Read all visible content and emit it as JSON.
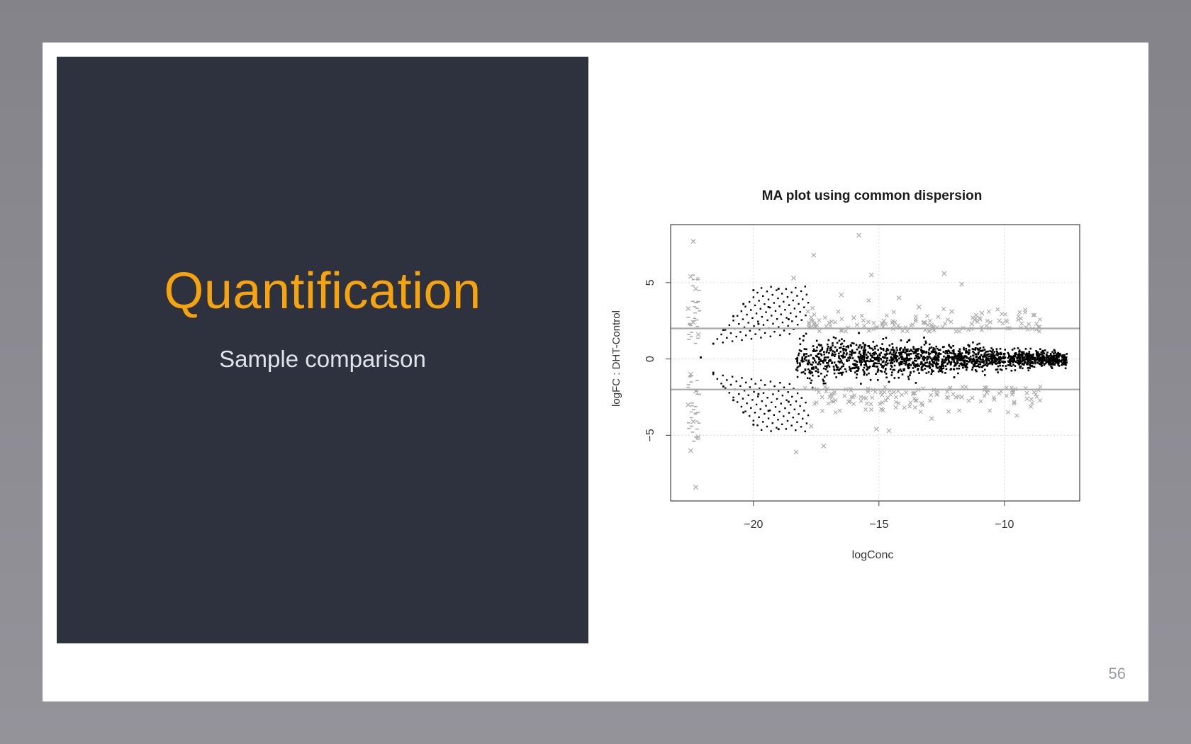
{
  "slide": {
    "title": "Quantification",
    "subtitle": "Sample comparison",
    "page_number": "56"
  },
  "colors": {
    "panel": "#2e313e",
    "title": "#f5a410",
    "subtitle": "#e1e3ea",
    "page_number": "#9a9ca6",
    "points_nonsignificant": "#000000",
    "points_significant": "#aaaaaa"
  },
  "chart_data": {
    "type": "scatter",
    "title": "MA plot using common dispersion",
    "xlabel": "logConc",
    "ylabel": "logFC : DHT-Control",
    "xlim": [
      -23.3,
      -7.0
    ],
    "ylim": [
      -9.3,
      8.8
    ],
    "xticks": [
      -20,
      -15,
      -10
    ],
    "xtick_labels": [
      "−20",
      "−15",
      "−10"
    ],
    "yticks": [
      -5,
      0,
      5
    ],
    "ytick_labels": [
      "−5",
      "0",
      "5"
    ],
    "grid": true,
    "threshold_lines": [
      2,
      -2
    ],
    "series": [
      {
        "marker": "dot",
        "color": "#000000",
        "points": [
          [
            -17.5,
            0.2
          ],
          [
            -16.8,
            -0.5
          ],
          [
            -16.0,
            0.4
          ],
          [
            -15.2,
            -0.3
          ],
          [
            -14.5,
            0.6
          ],
          [
            -13.8,
            -0.4
          ],
          [
            -13.0,
            0.3
          ],
          [
            -12.2,
            -0.2
          ],
          [
            -11.4,
            0.4
          ],
          [
            -10.6,
            -0.3
          ],
          [
            -9.8,
            0.2
          ],
          [
            -9.0,
            0.1
          ],
          [
            -8.2,
            -0.2
          ],
          [
            -7.6,
            0.1
          ],
          [
            -18.0,
            1.5
          ],
          [
            -17.2,
            -1.6
          ],
          [
            -15.8,
            1.7
          ],
          [
            -14.6,
            -1.5
          ],
          [
            -13.2,
            1.4
          ],
          [
            -12.0,
            -1.2
          ],
          [
            -20.0,
            4.5
          ],
          [
            -20.4,
            3.6
          ],
          [
            -20.8,
            2.8
          ],
          [
            -21.2,
            1.9
          ],
          [
            -21.6,
            1.0
          ],
          [
            -20.0,
            -4.3
          ],
          [
            -20.4,
            -3.5
          ],
          [
            -20.8,
            -2.7
          ],
          [
            -21.2,
            -1.8
          ],
          [
            -21.6,
            -0.9
          ],
          [
            -19.0,
            4.6
          ],
          [
            -19.4,
            3.4
          ],
          [
            -19.8,
            2.3
          ],
          [
            -19.0,
            -4.6
          ],
          [
            -19.4,
            -3.4
          ],
          [
            -19.8,
            -2.3
          ],
          [
            -18.6,
            2.6
          ],
          [
            -18.6,
            -2.8
          ],
          [
            -22.1,
            0.1
          ]
        ]
      },
      {
        "marker": "x",
        "color": "#aaaaaa",
        "points": [
          [
            -22.4,
            7.7
          ],
          [
            -22.5,
            5.4
          ],
          [
            -22.3,
            4.6
          ],
          [
            -22.6,
            3.3
          ],
          [
            -22.4,
            2.4
          ],
          [
            -22.2,
            1.6
          ],
          [
            -22.5,
            -1.0
          ],
          [
            -22.3,
            -2.1
          ],
          [
            -22.6,
            -3.0
          ],
          [
            -22.4,
            -4.1
          ],
          [
            -22.2,
            -5.1
          ],
          [
            -22.5,
            -6.0
          ],
          [
            -22.3,
            -8.4
          ],
          [
            -15.8,
            8.1
          ],
          [
            -17.6,
            6.8
          ],
          [
            -18.4,
            5.3
          ],
          [
            -15.3,
            5.5
          ],
          [
            -12.4,
            5.6
          ],
          [
            -11.7,
            4.9
          ],
          [
            -16.5,
            4.2
          ],
          [
            -14.2,
            4.0
          ],
          [
            -13.4,
            3.4
          ],
          [
            -12.1,
            3.1
          ],
          [
            -10.9,
            3.0
          ],
          [
            -10.2,
            2.5
          ],
          [
            -16.0,
            2.7
          ],
          [
            -14.8,
            2.5
          ],
          [
            -13.2,
            2.4
          ],
          [
            -11.3,
            2.3
          ],
          [
            -16.2,
            -2.8
          ],
          [
            -14.9,
            -3.3
          ],
          [
            -13.3,
            -2.9
          ],
          [
            -11.7,
            -2.5
          ],
          [
            -10.7,
            -2.2
          ],
          [
            -17.7,
            -4.4
          ],
          [
            -15.1,
            -4.6
          ],
          [
            -14.6,
            -4.7
          ],
          [
            -12.9,
            -3.9
          ],
          [
            -9.1,
            -2.6
          ],
          [
            -18.3,
            -6.1
          ],
          [
            -17.2,
            -5.7
          ]
        ]
      }
    ]
  }
}
